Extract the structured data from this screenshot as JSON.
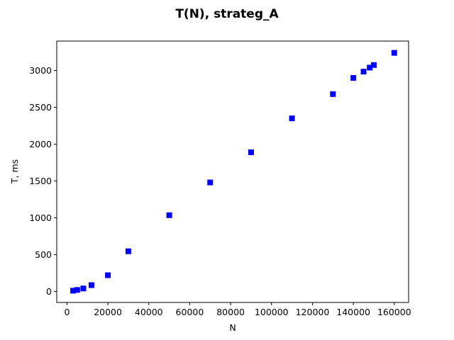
{
  "chart_data": {
    "type": "scatter",
    "title": "T(N), strateg_A",
    "xlabel": "N",
    "ylabel": "T, ms",
    "xlim": [
      -5000,
      167000
    ],
    "ylim": [
      -150,
      3400
    ],
    "xticks": [
      0,
      20000,
      40000,
      60000,
      80000,
      100000,
      120000,
      140000,
      160000
    ],
    "yticks": [
      0,
      500,
      1000,
      1500,
      2000,
      2500,
      3000
    ],
    "grid": false,
    "marker": "square",
    "color": "#0000ff",
    "series": [
      {
        "x": [
          3000,
          5000,
          8000,
          12000,
          20000,
          30000,
          50000,
          70000,
          90000,
          110000,
          130000,
          140000,
          145000,
          148000,
          150000,
          160000
        ],
        "y": [
          10,
          20,
          40,
          85,
          220,
          545,
          1035,
          1480,
          1890,
          2350,
          2680,
          2900,
          2985,
          3040,
          3075,
          3240
        ]
      }
    ]
  }
}
